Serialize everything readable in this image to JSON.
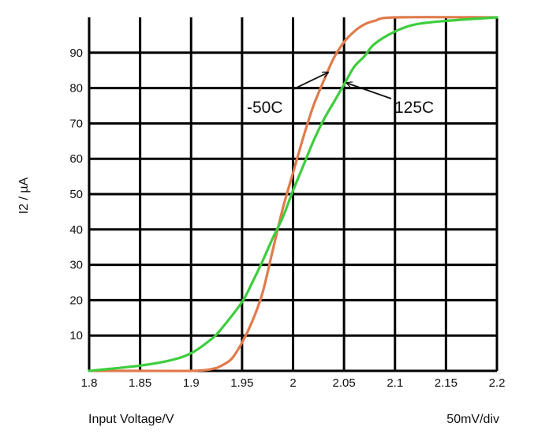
{
  "chart_data": {
    "type": "line",
    "xlabel": "Input Voltage/V",
    "ylabel": "I2 / µA",
    "scale_note": "50mV/div",
    "xlim": [
      1.8,
      2.2
    ],
    "ylim": [
      0,
      100
    ],
    "grid": true,
    "xticks": [
      "1.8",
      "1.85",
      "1.9",
      "1.95",
      "2",
      "2.05",
      "2.1",
      "2.15",
      "2.2"
    ],
    "yticks": [
      "10",
      "20",
      "30",
      "40",
      "50",
      "60",
      "70",
      "80",
      "90"
    ],
    "series": [
      {
        "name": "-50C",
        "color": "#e07b4b",
        "points": [
          [
            1.8,
            0
          ],
          [
            1.85,
            0
          ],
          [
            1.9,
            0
          ],
          [
            1.92,
            0.5
          ],
          [
            1.93,
            1.5
          ],
          [
            1.94,
            3.5
          ],
          [
            1.95,
            8
          ],
          [
            1.96,
            14
          ],
          [
            1.97,
            22
          ],
          [
            1.98,
            34
          ],
          [
            1.99,
            46
          ],
          [
            2.0,
            56
          ],
          [
            2.01,
            66
          ],
          [
            2.02,
            75
          ],
          [
            2.03,
            82
          ],
          [
            2.04,
            88.5
          ],
          [
            2.05,
            93
          ],
          [
            2.06,
            96
          ],
          [
            2.07,
            98
          ],
          [
            2.08,
            99
          ],
          [
            2.1,
            100
          ],
          [
            2.2,
            100
          ]
        ]
      },
      {
        "name": "125C",
        "color": "#3dcd3d",
        "points": [
          [
            1.8,
            0
          ],
          [
            1.85,
            1.5
          ],
          [
            1.88,
            3
          ],
          [
            1.9,
            5
          ],
          [
            1.92,
            9
          ],
          [
            1.93,
            12
          ],
          [
            1.95,
            19.5
          ],
          [
            1.96,
            25
          ],
          [
            1.97,
            31
          ],
          [
            1.98,
            37.5
          ],
          [
            1.99,
            43.5
          ],
          [
            2.0,
            51
          ],
          [
            2.01,
            58
          ],
          [
            2.02,
            65
          ],
          [
            2.03,
            71
          ],
          [
            2.04,
            76
          ],
          [
            2.05,
            81
          ],
          [
            2.06,
            86
          ],
          [
            2.07,
            89
          ],
          [
            2.08,
            92.5
          ],
          [
            2.1,
            96
          ],
          [
            2.12,
            98
          ],
          [
            2.15,
            99
          ],
          [
            2.2,
            100
          ]
        ]
      }
    ],
    "annotations": [
      {
        "text": "-50C",
        "series": "-50C",
        "arrow_to": [
          2.035,
          84.5
        ]
      },
      {
        "text": "125C",
        "series": "125C",
        "arrow_to": [
          2.052,
          81.5
        ]
      }
    ]
  }
}
